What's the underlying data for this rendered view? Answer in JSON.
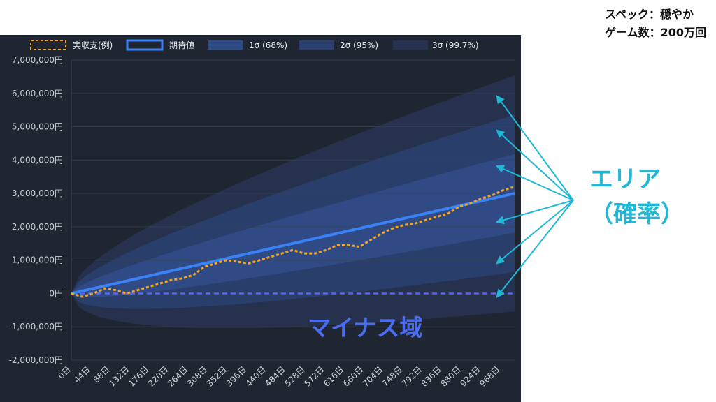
{
  "spec": {
    "line1": "スペック：穏やか",
    "line2": "ゲーム数：200万回"
  },
  "annotations": {
    "area_line1": "エリア",
    "area_line2": "（確率）",
    "minus_region": "マイナス域"
  },
  "colors": {
    "background": "#1f2631",
    "actual": "#f5a623",
    "expected": "#3b82f6",
    "band1": "#2f4b86",
    "band2": "#2a3f6d",
    "band3": "#26324f",
    "zero_line": "#5b63f5",
    "annotation": "#1fb8d6",
    "minus_text": "#4a6cf0"
  },
  "chart_data": {
    "type": "area",
    "legend": {
      "placement": "top",
      "items": [
        {
          "key": "actual",
          "label": "実収支(例)"
        },
        {
          "key": "expected",
          "label": "期待値"
        },
        {
          "key": "band1",
          "label": "1σ (68%)"
        },
        {
          "key": "band2",
          "label": "2σ (95%)"
        },
        {
          "key": "band3",
          "label": "3σ (99.7%)"
        }
      ]
    },
    "xlim": [
      0,
      1000
    ],
    "x_ticks": [
      0,
      44,
      88,
      132,
      176,
      220,
      264,
      308,
      352,
      396,
      440,
      484,
      528,
      572,
      616,
      660,
      704,
      748,
      792,
      836,
      880,
      924,
      968
    ],
    "x_tick_labels": [
      "0日",
      "44日",
      "88日",
      "132日",
      "176日",
      "220日",
      "264日",
      "308日",
      "352日",
      "396日",
      "440日",
      "484日",
      "528日",
      "572日",
      "616日",
      "660日",
      "704日",
      "748日",
      "792日",
      "836日",
      "880日",
      "924日",
      "968日"
    ],
    "ylim": [
      -2000000,
      7000000
    ],
    "y_ticks": [
      -2000000,
      -1000000,
      0,
      1000000,
      2000000,
      3000000,
      4000000,
      5000000,
      6000000,
      7000000
    ],
    "y_tick_labels": [
      "-2,000,000円",
      "-1,000,000円",
      "0円",
      "1,000,000円",
      "2,000,000円",
      "3,000,000円",
      "4,000,000円",
      "5,000,000円",
      "6,000,000円",
      "7,000,000円"
    ],
    "grid": true,
    "expected": {
      "x": [
        0,
        1000
      ],
      "y": [
        0,
        3000000
      ]
    },
    "sigma_at_end": 1180000,
    "zero_line": 0,
    "actual": {
      "x": [
        0,
        25,
        50,
        75,
        100,
        125,
        150,
        175,
        200,
        225,
        250,
        275,
        300,
        325,
        350,
        375,
        400,
        425,
        450,
        475,
        500,
        525,
        550,
        575,
        600,
        625,
        650,
        675,
        700,
        725,
        750,
        775,
        800,
        825,
        850,
        875,
        900,
        925,
        950,
        975,
        1000
      ],
      "y": [
        0,
        -100000,
        0,
        150000,
        100000,
        0,
        100000,
        200000,
        300000,
        400000,
        450000,
        550000,
        800000,
        900000,
        1000000,
        950000,
        900000,
        1000000,
        1100000,
        1200000,
        1300000,
        1200000,
        1200000,
        1300000,
        1450000,
        1450000,
        1400000,
        1600000,
        1800000,
        1950000,
        2050000,
        2100000,
        2200000,
        2300000,
        2400000,
        2600000,
        2700000,
        2850000,
        2950000,
        3100000,
        3200000
      ]
    }
  }
}
